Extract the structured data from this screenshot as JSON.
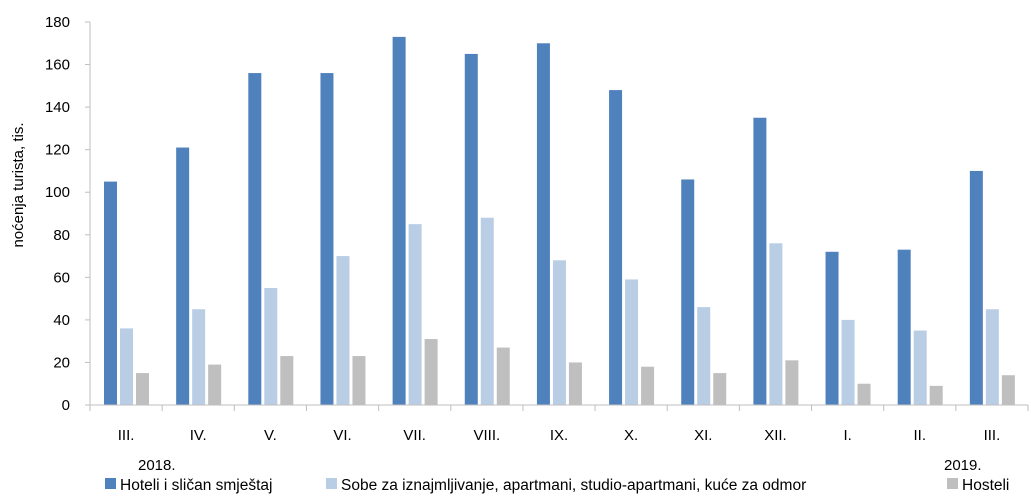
{
  "chart_data": {
    "type": "bar",
    "title": "",
    "xlabel": "",
    "ylabel": "noćenja turista, tis.",
    "ylim": [
      0,
      180
    ],
    "yticks": [
      0,
      20,
      40,
      60,
      80,
      100,
      120,
      140,
      160,
      180
    ],
    "categories": [
      "III.",
      "IV.",
      "V.",
      "VI.",
      "VII.",
      "VIII.",
      "IX.",
      "X.",
      "XI.",
      "XII.",
      "I.",
      "II.",
      "III."
    ],
    "year_labels": {
      "start": "2018.",
      "end": "2019."
    },
    "grid": false,
    "legend_position": "bottom",
    "series": [
      {
        "name": "Hoteli i sličan smještaj",
        "color": "#4f81bd",
        "values": [
          105,
          121,
          156,
          156,
          173,
          165,
          170,
          148,
          106,
          135,
          72,
          73,
          110
        ]
      },
      {
        "name": "Sobe za iznajmljivanje, apartmani, studio-apartmani, kuće za odmor",
        "color": "#b9cde5",
        "values": [
          36,
          45,
          55,
          70,
          85,
          88,
          68,
          59,
          46,
          76,
          40,
          35,
          45
        ]
      },
      {
        "name": "Hosteli",
        "color": "#bfbfbf",
        "values": [
          15,
          19,
          23,
          23,
          31,
          27,
          20,
          18,
          15,
          21,
          10,
          9,
          14
        ]
      }
    ]
  }
}
